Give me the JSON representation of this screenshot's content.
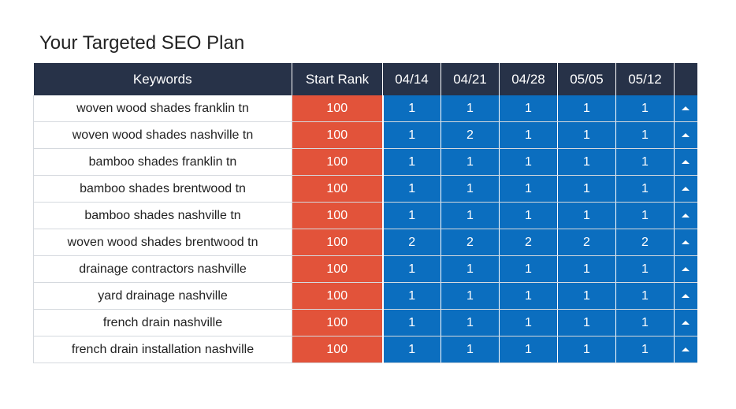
{
  "title": "Your Targeted SEO Plan",
  "headers": {
    "keywords": "Keywords",
    "start_rank": "Start Rank",
    "weeks": [
      "04/14",
      "04/21",
      "04/28",
      "05/05",
      "05/12"
    ]
  },
  "rows": [
    {
      "keyword": "woven wood shades franklin tn",
      "start": "100",
      "ranks": [
        "1",
        "1",
        "1",
        "1",
        "1"
      ],
      "trend_icon": "arrow-up-icon"
    },
    {
      "keyword": "woven wood shades nashville tn",
      "start": "100",
      "ranks": [
        "1",
        "2",
        "1",
        "1",
        "1"
      ],
      "trend_icon": "arrow-up-icon"
    },
    {
      "keyword": "bamboo shades franklin tn",
      "start": "100",
      "ranks": [
        "1",
        "1",
        "1",
        "1",
        "1"
      ],
      "trend_icon": "arrow-up-icon"
    },
    {
      "keyword": "bamboo shades brentwood tn",
      "start": "100",
      "ranks": [
        "1",
        "1",
        "1",
        "1",
        "1"
      ],
      "trend_icon": "arrow-up-icon"
    },
    {
      "keyword": "bamboo shades nashville tn",
      "start": "100",
      "ranks": [
        "1",
        "1",
        "1",
        "1",
        "1"
      ],
      "trend_icon": "arrow-up-icon"
    },
    {
      "keyword": "woven wood shades brentwood tn",
      "start": "100",
      "ranks": [
        "2",
        "2",
        "2",
        "2",
        "2"
      ],
      "trend_icon": "arrow-up-icon"
    },
    {
      "keyword": "drainage contractors nashville",
      "start": "100",
      "ranks": [
        "1",
        "1",
        "1",
        "1",
        "1"
      ],
      "trend_icon": "arrow-up-icon"
    },
    {
      "keyword": "yard drainage nashville",
      "start": "100",
      "ranks": [
        "1",
        "1",
        "1",
        "1",
        "1"
      ],
      "trend_icon": "arrow-up-icon"
    },
    {
      "keyword": "french drain nashville",
      "start": "100",
      "ranks": [
        "1",
        "1",
        "1",
        "1",
        "1"
      ],
      "trend_icon": "arrow-up-icon"
    },
    {
      "keyword": "french drain installation nashville",
      "start": "100",
      "ranks": [
        "1",
        "1",
        "1",
        "1",
        "1"
      ],
      "trend_icon": "arrow-up-icon"
    }
  ],
  "colors": {
    "header_bg": "#273248",
    "start_rank_bg": "#e2533a",
    "rank_bg": "#0b6ebf"
  }
}
